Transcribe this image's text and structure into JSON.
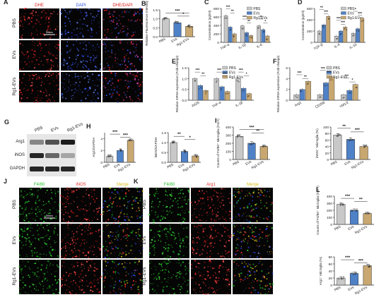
{
  "colors": {
    "pbs": "#c8c8c8",
    "evs": "#4f81c7",
    "rg1": "#c8a770",
    "dhe": "#e02020",
    "dapi": "#3355ee",
    "f480": "#22c02a",
    "inos": "#e83030",
    "arg1": "#e83030",
    "merge": "#d8c020"
  },
  "micro": {
    "A": {
      "letter": "A",
      "cols": [
        "DHE",
        "DAPI",
        "DHE/DAPI"
      ],
      "rows": [
        "PBS",
        "EVs",
        "Rg1-EVs"
      ],
      "scale": "50mm"
    },
    "J": {
      "letter": "J",
      "cols": [
        "F4/80",
        "iNOS",
        "Merge"
      ],
      "rows": [
        "PBS",
        "EVs",
        "Rg1-EVs"
      ],
      "scale": "50mm"
    },
    "K": {
      "letter": "K",
      "cols": [
        "F4/80",
        "Arg1",
        "Merge"
      ],
      "rows": [
        "PBS",
        "EVs",
        "Rg1-EVs"
      ]
    }
  },
  "blot": {
    "letter": "G",
    "lanes": [
      "PBS",
      "EVs",
      "Rg1-EVs"
    ],
    "bands": [
      "Arg1",
      "iNOS",
      "GAPDH"
    ]
  },
  "chart_data": [
    {
      "panel": "B",
      "type": "bar",
      "categories": [
        "PBS",
        "EVs",
        "Rg1-EVs"
      ],
      "values": [
        1.0,
        0.78,
        0.58
      ],
      "ylabel": "Relative Fluorescence Intensity",
      "ylim": [
        0,
        1.5
      ],
      "ticks": [
        "0.0",
        "0.5",
        "1.0",
        "1.5"
      ],
      "sig": [
        {
          "a": 0,
          "b": 2,
          "t": "***"
        },
        {
          "a": 1,
          "b": 2,
          "t": "*"
        }
      ]
    },
    {
      "panel": "C",
      "type": "bar",
      "legend": [
        "PBS",
        "EVs",
        "Rg1-EVs"
      ],
      "categories": [
        "TNF-α",
        "IL-1β",
        "IL-6"
      ],
      "series": [
        {
          "name": "PBS",
          "values": [
            630,
            390,
            390
          ]
        },
        {
          "name": "EVs",
          "values": [
            360,
            230,
            300
          ]
        },
        {
          "name": "Rg1-EVs",
          "values": [
            200,
            160,
            150
          ]
        }
      ],
      "ylabel": "Concentration (pg/ml)",
      "ylim": [
        0,
        800
      ],
      "ticks": [
        "0",
        "200",
        "400",
        "600",
        "800"
      ],
      "sig": [
        "***",
        "**",
        "***",
        "**",
        "**",
        "*"
      ]
    },
    {
      "panel": "D",
      "type": "bar",
      "legend": [
        "PBS",
        "EVs",
        "Rg1-EVs"
      ],
      "categories": [
        "TGF-β",
        "IL-4",
        "IL-10"
      ],
      "series": [
        {
          "name": "PBS",
          "values": [
            200,
            110,
            160
          ]
        },
        {
          "name": "EVs",
          "values": [
            310,
            200,
            240
          ]
        },
        {
          "name": "Rg1-EVs",
          "values": [
            460,
            270,
            430
          ]
        }
      ],
      "ylabel": "Concentration (pg/ml)",
      "ylim": [
        0,
        600
      ],
      "ticks": [
        "0",
        "200",
        "400",
        "600"
      ],
      "sig": [
        "**",
        "***",
        "***",
        "***",
        "*",
        "***"
      ]
    },
    {
      "panel": "E",
      "type": "bar",
      "legend": [
        "PBS",
        "EVs",
        "Rg1-EVs"
      ],
      "categories": [
        "iNOS",
        "TNF-α",
        "IL-1β"
      ],
      "series": [
        {
          "name": "PBS",
          "values": [
            1.0,
            1.0,
            1.0
          ]
        },
        {
          "name": "EVs",
          "values": [
            0.68,
            0.62,
            0.55
          ]
        },
        {
          "name": "Rg1-EVs",
          "values": [
            0.45,
            0.4,
            0.3
          ]
        }
      ],
      "ylabel": "Relative mRNA expression (Fold change)",
      "ylim": [
        0,
        1.5
      ],
      "ticks": [
        "0.0",
        "0.5",
        "1.0",
        "1.5"
      ],
      "sig": [
        "***",
        "**",
        "***",
        "***",
        "***",
        "*"
      ]
    },
    {
      "panel": "F",
      "type": "bar",
      "legend": [
        "PBS",
        "EVs",
        "Rg1-EVs"
      ],
      "categories": [
        "Arg1",
        "CD206",
        "YM1/2"
      ],
      "series": [
        {
          "name": "PBS",
          "values": [
            1.0,
            1.0,
            1.0
          ]
        },
        {
          "name": "EVs",
          "values": [
            2.0,
            3.2,
            1.8
          ]
        },
        {
          "name": "Rg1-EVs",
          "values": [
            3.5,
            4.3,
            2.9
          ]
        }
      ],
      "ylabel": "Relative mRNA expression (Fold change)",
      "ylim": [
        0,
        6
      ],
      "ticks": [
        "0",
        "2",
        "4",
        "6"
      ],
      "sig": [
        "***",
        "**",
        "***",
        "***",
        "***",
        "*"
      ]
    },
    {
      "panel": "H1",
      "type": "bar",
      "categories": [
        "PBS",
        "EVs",
        "Rg1-EVs"
      ],
      "values": [
        1.0,
        2.0,
        3.7
      ],
      "ylabel": "Arg1/GAPDH",
      "ylim": [
        0,
        5
      ],
      "ticks": [
        "0",
        "2",
        "4"
      ],
      "sig": [
        {
          "a": 0,
          "b": 1,
          "t": "***"
        },
        {
          "a": 1,
          "b": 2,
          "t": "***"
        }
      ]
    },
    {
      "panel": "H2",
      "type": "bar",
      "categories": [
        "PBS",
        "EVs",
        "Rg1-EVs"
      ],
      "values": [
        1.0,
        0.55,
        0.32
      ],
      "ylabel": "iNOS/GAPDH",
      "ylim": [
        0,
        1.5
      ],
      "ticks": [
        "0.0",
        "0.5",
        "1.0",
        "1.5"
      ],
      "sig": [
        {
          "a": 0,
          "b": 1,
          "t": "**"
        },
        {
          "a": 1,
          "b": 2,
          "t": "*"
        }
      ]
    },
    {
      "panel": "I1",
      "type": "bar",
      "categories": [
        "PBS",
        "EVs",
        "Rg1-EVs"
      ],
      "values": [
        285,
        200,
        160
      ],
      "ylabel": "Counts of F4/80⁺ Microglia (/mm²)",
      "ylim": [
        0,
        400
      ],
      "ticks": [
        "0",
        "100",
        "200",
        "300",
        "400"
      ],
      "sig": [
        {
          "a": 0,
          "b": 2,
          "t": "***"
        },
        {
          "a": 1,
          "b": 2,
          "t": "**"
        }
      ]
    },
    {
      "panel": "I2",
      "type": "bar",
      "categories": [
        "PBS",
        "EVs",
        "Rg1-EVs"
      ],
      "values": [
        75,
        62,
        40
      ],
      "ylabel": "iNOS⁺ Microglia (%)",
      "ylim": [
        0,
        100
      ],
      "ticks": [
        "0",
        "20",
        "40",
        "60",
        "80",
        "100"
      ],
      "sig": [
        {
          "a": 0,
          "b": 1,
          "t": "**"
        },
        {
          "a": 1,
          "b": 2,
          "t": "***"
        }
      ]
    },
    {
      "panel": "L1",
      "type": "bar",
      "categories": [
        "PBS",
        "EVs",
        "Rg1-EVs"
      ],
      "values": [
        285,
        200,
        155
      ],
      "ylabel": "Counts of F4/80⁺ Microglia (/mm²)",
      "ylim": [
        0,
        400
      ],
      "ticks": [
        "0",
        "100",
        "200",
        "300",
        "400"
      ],
      "sig": [
        {
          "a": 0,
          "b": 1,
          "t": "***"
        },
        {
          "a": 1,
          "b": 2,
          "t": "**"
        }
      ]
    },
    {
      "panel": "L2",
      "type": "bar",
      "categories": [
        "PBS",
        "EVs",
        "Rg1-EVs"
      ],
      "values": [
        20,
        33,
        55
      ],
      "ylabel": "Arg1⁺ Microglia (%)",
      "ylim": [
        0,
        80
      ],
      "ticks": [
        "0",
        "20",
        "40",
        "60",
        "80"
      ],
      "sig": [
        {
          "a": 0,
          "b": 1,
          "t": "***"
        },
        {
          "a": 1,
          "b": 2,
          "t": "***"
        }
      ]
    }
  ]
}
